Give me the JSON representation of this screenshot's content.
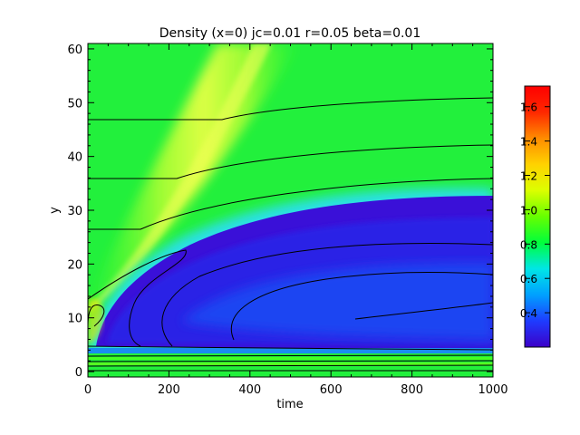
{
  "chart_data": {
    "type": "heatmap",
    "title": "Density (x=0) jc=0.01 r=0.05 beta=0.01",
    "xlabel": "time",
    "ylabel": "y",
    "xlim": [
      0,
      1000
    ],
    "ylim": [
      -1,
      61
    ],
    "x_ticks": [
      "0",
      "200",
      "400",
      "600",
      "800",
      "1000"
    ],
    "y_ticks": [
      "0",
      "10",
      "20",
      "30",
      "40",
      "50",
      "60"
    ],
    "colorbar": {
      "range": [
        0.2,
        1.72
      ],
      "ticks": [
        "0.4",
        "0.6",
        "0.8",
        "1.0",
        "1.2",
        "1.4",
        "1.6"
      ],
      "colors": [
        "#3c00c8",
        "#1e3cff",
        "#00a0ff",
        "#00e6e6",
        "#00ff3c",
        "#66ff00",
        "#dcff00",
        "#ffd200",
        "#ff8c00",
        "#ff2800",
        "#ff0000"
      ]
    },
    "regions": [
      {
        "name": "background",
        "value": 0.95
      },
      {
        "name": "front-ridge",
        "value": 1.2
      },
      {
        "name": "depletion-zone",
        "value": 0.35
      },
      {
        "name": "depletion-core",
        "value": 0.3
      }
    ]
  }
}
